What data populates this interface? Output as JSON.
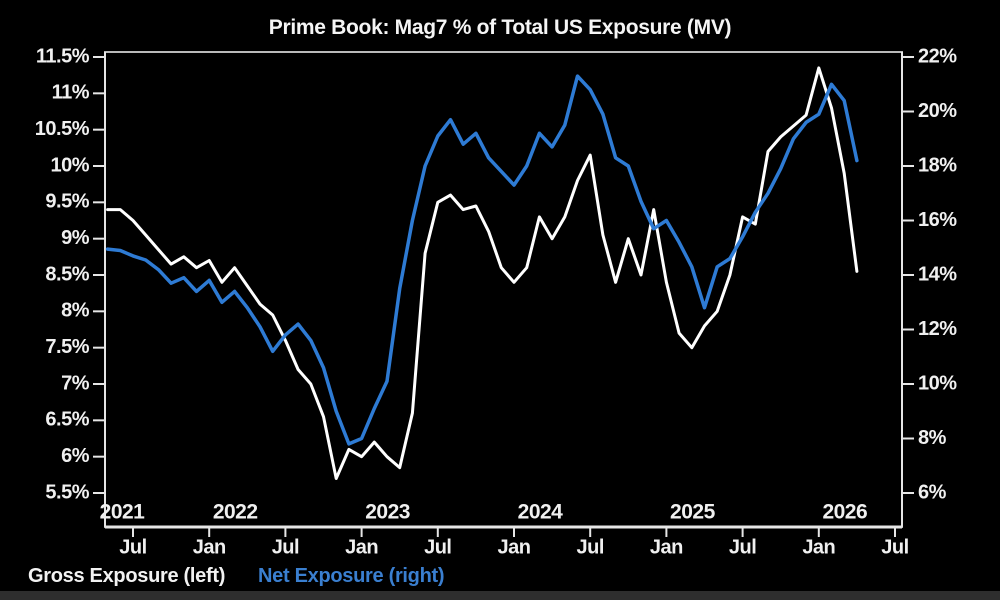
{
  "title": "Prime Book: Mag7 % of Total US Exposure (MV)",
  "legend": [
    {
      "label": "Gross Exposure (left)",
      "color": "#f2f2f2"
    },
    {
      "label": "Net Exposure (right)",
      "color": "#3a7fd0"
    }
  ],
  "colors": {
    "background": "#000000",
    "frame": "#b9b9b9",
    "tick": "#e6e6e6",
    "label": "#f0f0f0",
    "gross_line": "#ffffff",
    "net_line": "#2e7bd4",
    "bottom_bar": "#2e2e2e"
  },
  "chart_data": {
    "type": "line",
    "title": "Prime Book: Mag7 % of Total US Exposure (MV)",
    "grid": false,
    "background": "#000000",
    "legend_position": "bottom-left",
    "x": [
      "2021-05",
      "2021-06",
      "2021-07",
      "2021-08",
      "2021-09",
      "2021-10",
      "2021-11",
      "2021-12",
      "2022-01",
      "2022-02",
      "2022-03",
      "2022-04",
      "2022-05",
      "2022-06",
      "2022-07",
      "2022-08",
      "2022-09",
      "2022-10",
      "2022-11",
      "2022-12",
      "2023-01",
      "2023-02",
      "2023-03",
      "2023-04",
      "2023-05",
      "2023-06",
      "2023-07",
      "2023-08",
      "2023-09",
      "2023-10",
      "2023-11",
      "2023-12",
      "2024-01",
      "2024-02",
      "2024-03",
      "2024-04",
      "2024-05",
      "2024-06",
      "2024-07",
      "2024-08",
      "2024-09",
      "2024-10",
      "2024-11",
      "2024-12",
      "2025-01",
      "2025-02",
      "2025-03",
      "2025-04",
      "2025-05",
      "2025-06",
      "2025-07",
      "2025-08",
      "2025-09",
      "2025-10",
      "2025-11",
      "2025-12",
      "2026-01",
      "2026-02",
      "2026-03",
      "2026-04"
    ],
    "series": [
      {
        "name": "Gross Exposure (left)",
        "axis": "left",
        "color": "#ffffff",
        "unit": "%",
        "values": [
          9.4,
          9.4,
          9.25,
          9.05,
          8.85,
          8.65,
          8.75,
          8.6,
          8.7,
          8.4,
          8.6,
          8.35,
          8.1,
          7.95,
          7.6,
          7.2,
          7.0,
          6.55,
          5.7,
          6.1,
          6.0,
          6.2,
          6.0,
          5.85,
          6.6,
          8.8,
          9.5,
          9.6,
          9.4,
          9.45,
          9.1,
          8.6,
          8.4,
          8.6,
          9.3,
          9.0,
          9.3,
          9.8,
          10.15,
          9.05,
          8.4,
          9.0,
          8.5,
          9.4,
          8.4,
          7.7,
          7.5,
          7.8,
          8.0,
          8.5,
          9.3,
          9.2,
          10.2,
          10.4,
          10.55,
          10.7,
          11.35,
          10.8,
          9.9,
          8.55
        ]
      },
      {
        "name": "Net Exposure (right)",
        "axis": "right",
        "color": "#2e7bd4",
        "unit": "%",
        "values": [
          14.95,
          14.9,
          14.7,
          14.55,
          14.2,
          13.7,
          13.9,
          13.4,
          13.8,
          13.0,
          13.4,
          12.8,
          12.1,
          11.2,
          11.8,
          12.2,
          11.6,
          10.6,
          9.0,
          7.8,
          8.0,
          9.1,
          10.1,
          13.5,
          16.0,
          18.0,
          19.1,
          19.7,
          18.8,
          19.2,
          18.3,
          17.8,
          17.3,
          18.0,
          19.2,
          18.7,
          19.5,
          21.3,
          20.8,
          19.9,
          18.3,
          18.0,
          16.7,
          15.7,
          16.0,
          15.2,
          14.3,
          12.8,
          14.3,
          14.6,
          15.4,
          16.3,
          17.0,
          17.9,
          19.0,
          19.6,
          19.9,
          21.0,
          20.4,
          18.2
        ]
      }
    ],
    "left_axis": {
      "labels": [
        "11.5%",
        "11%",
        "10.5%",
        "10%",
        "9.5%",
        "9%",
        "8.5%",
        "8%",
        "7.5%",
        "7%",
        "6.5%",
        "6%",
        "5.5%"
      ],
      "min": 5.5,
      "max": 11.5
    },
    "right_axis": {
      "labels": [
        "22%",
        "20%",
        "18%",
        "16%",
        "14%",
        "12%",
        "10%",
        "8%",
        "6%"
      ],
      "min": 6,
      "max": 22
    },
    "x_axis": {
      "month_ticks": [
        {
          "label": "Jul",
          "month_index": 2
        },
        {
          "label": "Jan",
          "month_index": 8
        },
        {
          "label": "Jul",
          "month_index": 14
        },
        {
          "label": "Jan",
          "month_index": 20
        },
        {
          "label": "Jul",
          "month_index": 26
        },
        {
          "label": "Jan",
          "month_index": 32
        },
        {
          "label": "Jul",
          "month_index": 38
        },
        {
          "label": "Jan",
          "month_index": 44
        },
        {
          "label": "Jul",
          "month_index": 50
        },
        {
          "label": "Jan",
          "month_index": 56
        },
        {
          "label": "Jul",
          "month_index": 62
        }
      ],
      "year_labels": [
        {
          "label": "2021",
          "jan_index": -4
        },
        {
          "label": "2022",
          "jan_index": 8
        },
        {
          "label": "2023",
          "jan_index": 20
        },
        {
          "label": "2024",
          "jan_index": 32
        },
        {
          "label": "2025",
          "jan_index": 44
        },
        {
          "label": "2026",
          "jan_index": 56
        }
      ]
    }
  }
}
